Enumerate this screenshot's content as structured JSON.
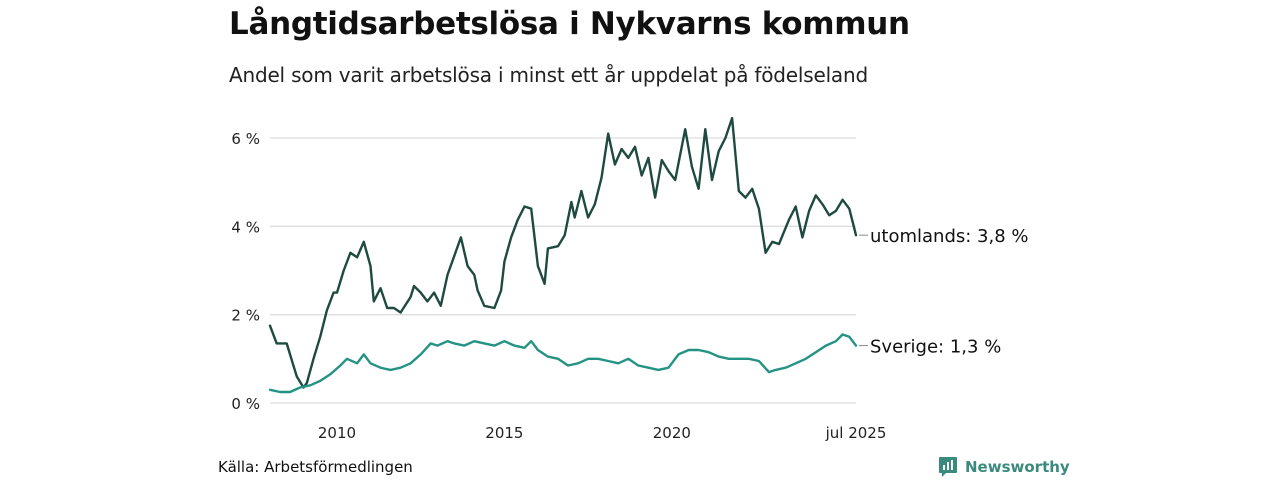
{
  "header": {
    "title": "Långtidsarbetslösa i Nykvarns kommun",
    "subtitle": "Andel som varit arbetslösa i minst ett år uppdelat på födelseland"
  },
  "footer": {
    "source": "Källa: Arbetsförmedlingen",
    "brand": "Newsworthy",
    "brand_icon": "chart-bubble-icon"
  },
  "colors": {
    "utomlands": "#1f4a40",
    "sverige": "#249384",
    "grid": "#dddddd",
    "brand": "#3a8a7e"
  },
  "chart_data": {
    "type": "line",
    "title": "Långtidsarbetslösa i Nykvarns kommun",
    "subtitle": "Andel som varit arbetslösa i minst ett år uppdelat på födelseland",
    "ylim": [
      0,
      6.5
    ],
    "yticks": [
      0,
      2,
      4,
      6
    ],
    "ytick_labels": [
      "0 %",
      "2 %",
      "4 %",
      "6 %"
    ],
    "xticks": [
      2010,
      2015,
      2020,
      2025.5
    ],
    "xtick_labels": [
      "2010",
      "2015",
      "2020",
      "jul 2025"
    ],
    "grid": true,
    "series": [
      {
        "name": "utomlands",
        "end_label": "utomlands: 3,8 %",
        "x": [
          2008.0,
          2008.2,
          2008.5,
          2008.7,
          2008.8,
          2009.0,
          2009.1,
          2009.3,
          2009.5,
          2009.7,
          2009.9,
          2010.0,
          2010.2,
          2010.4,
          2010.6,
          2010.8,
          2011.0,
          2011.1,
          2011.3,
          2011.5,
          2011.7,
          2011.9,
          2012.2,
          2012.3,
          2012.5,
          2012.7,
          2012.9,
          2013.1,
          2013.3,
          2013.7,
          2013.9,
          2014.1,
          2014.2,
          2014.4,
          2014.7,
          2014.9,
          2015.0,
          2015.2,
          2015.4,
          2015.6,
          2015.8,
          2016.0,
          2016.2,
          2016.3,
          2016.6,
          2016.8,
          2017.0,
          2017.1,
          2017.3,
          2017.5,
          2017.7,
          2017.9,
          2018.1,
          2018.3,
          2018.5,
          2018.7,
          2018.9,
          2019.1,
          2019.3,
          2019.5,
          2019.7,
          2019.9,
          2020.1,
          2020.4,
          2020.6,
          2020.8,
          2021.0,
          2021.2,
          2021.4,
          2021.6,
          2021.8,
          2022.0,
          2022.2,
          2022.4,
          2022.6,
          2022.8,
          2023.0,
          2023.2,
          2023.5,
          2023.7,
          2023.9,
          2024.1,
          2024.3,
          2024.5,
          2024.7,
          2024.9,
          2025.1,
          2025.3,
          2025.5
        ],
        "y": [
          1.75,
          1.35,
          1.35,
          0.85,
          0.6,
          0.35,
          0.45,
          1.0,
          1.5,
          2.1,
          2.5,
          2.5,
          3.0,
          3.4,
          3.3,
          3.65,
          3.1,
          2.3,
          2.6,
          2.15,
          2.15,
          2.05,
          2.4,
          2.65,
          2.5,
          2.3,
          2.5,
          2.2,
          2.9,
          3.75,
          3.1,
          2.9,
          2.55,
          2.2,
          2.15,
          2.55,
          3.2,
          3.75,
          4.15,
          4.45,
          4.4,
          3.1,
          2.7,
          3.5,
          3.55,
          3.8,
          4.55,
          4.2,
          4.8,
          4.2,
          4.5,
          5.1,
          6.1,
          5.4,
          5.75,
          5.55,
          5.8,
          5.15,
          5.55,
          4.65,
          5.5,
          5.25,
          5.05,
          6.2,
          5.35,
          4.85,
          6.2,
          5.05,
          5.7,
          6.0,
          6.45,
          4.8,
          4.65,
          4.85,
          4.4,
          3.4,
          3.65,
          3.6,
          4.15,
          4.45,
          3.75,
          4.35,
          4.7,
          4.5,
          4.25,
          4.35,
          4.6,
          4.4,
          3.8
        ]
      },
      {
        "name": "Sverige",
        "end_label": "Sverige: 1,3 %",
        "x": [
          2008.0,
          2008.3,
          2008.6,
          2008.9,
          2009.2,
          2009.5,
          2009.8,
          2010.1,
          2010.3,
          2010.6,
          2010.8,
          2011.0,
          2011.3,
          2011.6,
          2011.9,
          2012.2,
          2012.5,
          2012.8,
          2013.0,
          2013.3,
          2013.5,
          2013.8,
          2014.1,
          2014.4,
          2014.7,
          2015.0,
          2015.3,
          2015.6,
          2015.8,
          2016.0,
          2016.3,
          2016.6,
          2016.9,
          2017.2,
          2017.5,
          2017.8,
          2018.1,
          2018.4,
          2018.7,
          2019.0,
          2019.3,
          2019.6,
          2019.9,
          2020.2,
          2020.5,
          2020.8,
          2021.1,
          2021.4,
          2021.7,
          2022.0,
          2022.3,
          2022.6,
          2022.9,
          2023.1,
          2023.4,
          2023.7,
          2024.0,
          2024.3,
          2024.6,
          2024.9,
          2025.1,
          2025.3,
          2025.5
        ],
        "y": [
          0.3,
          0.25,
          0.25,
          0.35,
          0.4,
          0.5,
          0.65,
          0.85,
          1.0,
          0.9,
          1.1,
          0.9,
          0.8,
          0.75,
          0.8,
          0.9,
          1.1,
          1.35,
          1.3,
          1.4,
          1.35,
          1.3,
          1.4,
          1.35,
          1.3,
          1.4,
          1.3,
          1.25,
          1.4,
          1.2,
          1.05,
          1.0,
          0.85,
          0.9,
          1.0,
          1.0,
          0.95,
          0.9,
          1.0,
          0.85,
          0.8,
          0.75,
          0.8,
          1.1,
          1.2,
          1.2,
          1.15,
          1.05,
          1.0,
          1.0,
          1.0,
          0.95,
          0.7,
          0.75,
          0.8,
          0.9,
          1.0,
          1.15,
          1.3,
          1.4,
          1.55,
          1.5,
          1.3
        ]
      }
    ]
  }
}
